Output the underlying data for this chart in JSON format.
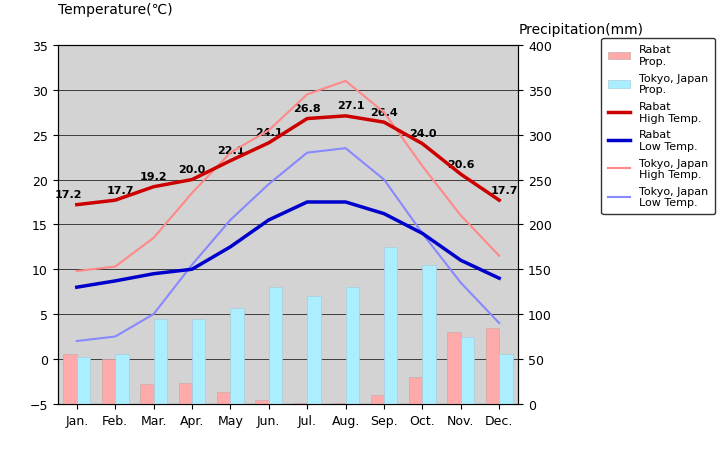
{
  "months": [
    "Jan.",
    "Feb.",
    "Mar.",
    "Apr.",
    "May",
    "Jun.",
    "Jul.",
    "Aug.",
    "Sep.",
    "Oct.",
    "Nov.",
    "Dec."
  ],
  "rabat_high_temp": [
    17.2,
    17.7,
    19.2,
    20.0,
    22.1,
    24.1,
    26.8,
    27.1,
    26.4,
    24.0,
    20.6,
    17.7
  ],
  "rabat_low_temp": [
    8.0,
    8.7,
    9.5,
    10.0,
    12.5,
    15.5,
    17.5,
    17.5,
    16.2,
    14.0,
    11.0,
    9.0
  ],
  "tokyo_high_temp": [
    9.8,
    10.3,
    13.5,
    18.5,
    23.0,
    25.5,
    29.5,
    31.0,
    27.5,
    21.5,
    16.0,
    11.5
  ],
  "tokyo_low_temp": [
    2.0,
    2.5,
    5.0,
    10.5,
    15.5,
    19.5,
    23.0,
    23.5,
    20.0,
    14.0,
    8.5,
    4.0
  ],
  "rabat_precip_mm": [
    55,
    50,
    22,
    23,
    13,
    4,
    1,
    1,
    10,
    30,
    80,
    85
  ],
  "tokyo_precip_mm": [
    52,
    55,
    95,
    95,
    107,
    130,
    120,
    130,
    175,
    155,
    75,
    55
  ],
  "background_color": "#d3d3d3",
  "title_left": "Temperature(℃)",
  "title_right": "Precipitation(mm)",
  "rabat_high_color": "#cc0000",
  "rabat_low_color": "#0000cc",
  "tokyo_high_color": "#ff8888",
  "tokyo_low_color": "#8888ff",
  "rabat_bar_color": "#ffaaaa",
  "tokyo_bar_color": "#aaeeff",
  "ylim_temp": [
    -5,
    35
  ],
  "ylim_precip": [
    0,
    400
  ],
  "temp_ticks": [
    -5,
    0,
    5,
    10,
    15,
    20,
    25,
    30,
    35
  ],
  "precip_ticks": [
    0,
    50,
    100,
    150,
    200,
    250,
    300,
    350,
    400
  ]
}
